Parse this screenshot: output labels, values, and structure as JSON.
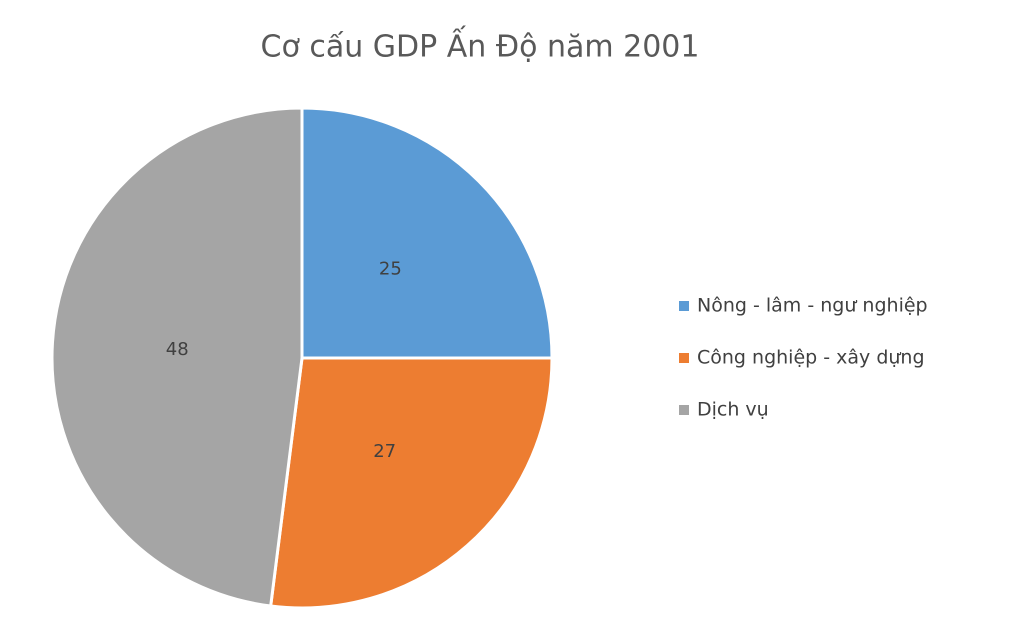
{
  "chart_data": {
    "type": "pie",
    "title": "Cơ cấu GDP Ấn Độ năm 2001",
    "categories": [
      "Nông - lâm - ngư nghiệp",
      "Công nghiệp - xây dựng",
      "Dịch vụ"
    ],
    "values": [
      25,
      27,
      48
    ],
    "colors": [
      "#5b9bd5",
      "#ed7d31",
      "#a5a5a5"
    ],
    "legend": "right"
  }
}
